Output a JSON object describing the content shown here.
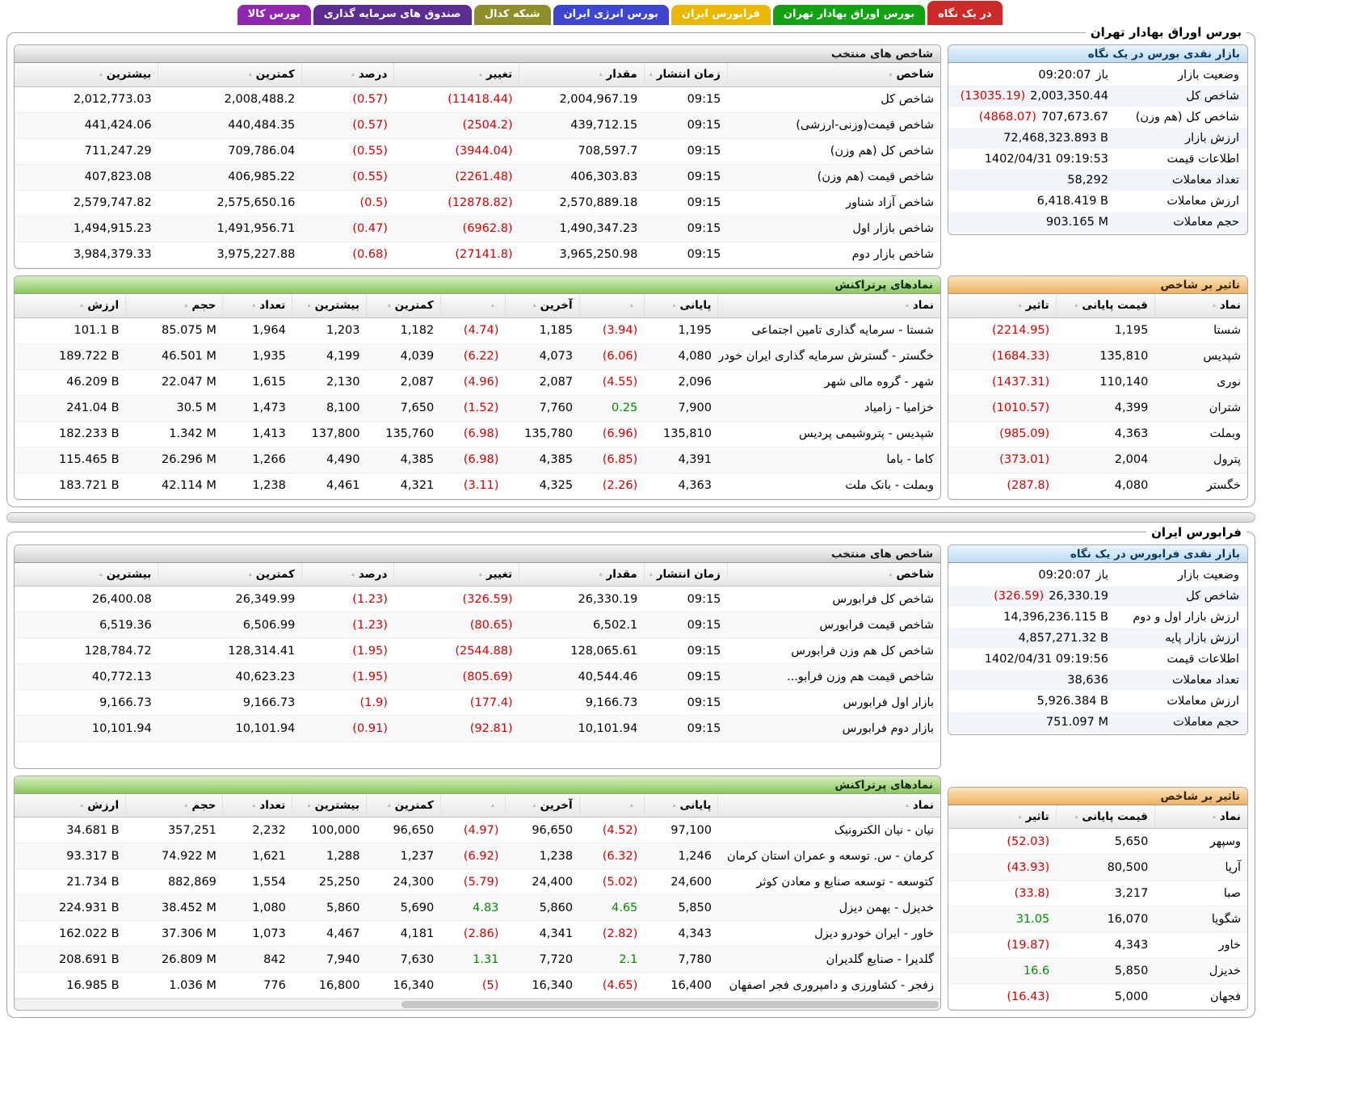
{
  "colors": {
    "negative": "#d40000",
    "positive": "#008a00"
  },
  "tabs": [
    {
      "id": "at-a-glance",
      "label": "در یک نگاه",
      "color": "#cd2a2a",
      "active": true
    },
    {
      "id": "tse",
      "label": "بورس اوراق بهادار تهران",
      "color": "#14a114",
      "active": false
    },
    {
      "id": "ifb",
      "label": "فرابورس ایران",
      "color": "#eab800",
      "active": false
    },
    {
      "id": "energy",
      "label": "بورس انرژی ایران",
      "color": "#3e46cf",
      "active": false
    },
    {
      "id": "codal",
      "label": "شبکه کدال",
      "color": "#8e8e2b",
      "active": false
    },
    {
      "id": "funds",
      "label": "صندوق های سرمایه گذاری",
      "color": "#5c2d91",
      "active": false
    },
    {
      "id": "commodity",
      "label": "بورس کالا",
      "color": "#8e28ae",
      "active": false
    }
  ],
  "sections": [
    {
      "title": "بورس اوراق بهادار تهران",
      "indices": {
        "header": "شاخص های منتخب",
        "columns": [
          "شاخص",
          "زمان انتشار",
          "مقدار",
          "تغییر",
          "درصد",
          "کمترین",
          "بیشترین"
        ],
        "rows": [
          {
            "name": "شاخص کل",
            "time": "09:15",
            "value": "2,004,967.19",
            "change": "(11418.44)",
            "percent": "(0.57)",
            "low": "2,008,488.2",
            "high": "2,012,773.03"
          },
          {
            "name": "شاخص قیمت(وزنی-ارزشی)",
            "time": "09:15",
            "value": "439,712.15",
            "change": "(2504.2)",
            "percent": "(0.57)",
            "low": "440,484.35",
            "high": "441,424.06"
          },
          {
            "name": "شاخص کل (هم وزن)",
            "time": "09:15",
            "value": "708,597.7",
            "change": "(3944.04)",
            "percent": "(0.55)",
            "low": "709,786.04",
            "high": "711,247.29"
          },
          {
            "name": "شاخص قیمت (هم وزن)",
            "time": "09:15",
            "value": "406,303.83",
            "change": "(2261.48)",
            "percent": "(0.55)",
            "low": "406,985.22",
            "high": "407,823.08"
          },
          {
            "name": "شاخص آزاد شناور",
            "time": "09:15",
            "value": "2,570,889.18",
            "change": "(12878.82)",
            "percent": "(0.5)",
            "low": "2,575,650.16",
            "high": "2,579,747.82"
          },
          {
            "name": "شاخص بازار اول",
            "time": "09:15",
            "value": "1,490,347.23",
            "change": "(6962.8)",
            "percent": "(0.47)",
            "low": "1,491,956.71",
            "high": "1,494,915.23"
          },
          {
            "name": "شاخص بازار دوم",
            "time": "09:15",
            "value": "3,965,250.98",
            "change": "(27141.8)",
            "percent": "(0.68)",
            "low": "3,975,227.88",
            "high": "3,984,379.33"
          }
        ]
      },
      "glance": {
        "header": "بازار نقدی بورس در یک نگاه",
        "rows": [
          {
            "label": "وضعیت بازار",
            "parts": [
              {
                "t": "09:20:07"
              },
              {
                "t": "باز"
              }
            ]
          },
          {
            "label": "شاخص کل",
            "parts": [
              {
                "t": "(13035.19)",
                "neg": true
              },
              {
                "t": "2,003,350.44"
              }
            ]
          },
          {
            "label": "شاخص کل (هم وزن)",
            "parts": [
              {
                "t": "(4868.07)",
                "neg": true
              },
              {
                "t": "707,673.67"
              }
            ]
          },
          {
            "label": "ارزش بازار",
            "parts": [
              {
                "t": "72,468,323.893 B"
              }
            ]
          },
          {
            "label": "اطلاعات قیمت",
            "parts": [
              {
                "t": "1402/04/31 09:19:53"
              }
            ]
          },
          {
            "label": "تعداد معاملات",
            "parts": [
              {
                "t": "58,292"
              }
            ]
          },
          {
            "label": "ارزش معاملات",
            "parts": [
              {
                "t": "6,418.419 B"
              }
            ]
          },
          {
            "label": "حجم معاملات",
            "parts": [
              {
                "t": "903.165 M"
              }
            ]
          }
        ]
      },
      "symbols": {
        "header": "نمادهای پرتراکنش",
        "columns": [
          "نماد",
          "پایانی",
          "",
          "آخرین",
          "",
          "کمترین",
          "بیشترین",
          "تعداد",
          "حجم",
          "ارزش"
        ],
        "rows": [
          {
            "name": "شستا - سرمایه گذاری تامین اجتماعی",
            "close": "1,195",
            "close_pct": "(3.94)",
            "last": "1,185",
            "last_pct": "(4.74)",
            "low": "1,182",
            "high": "1,203",
            "count": "1,964",
            "volume": "85.075 M",
            "value": "101.1 B"
          },
          {
            "name": "خگستر - گسترش سرمایه گذاری ایران خودرو",
            "close": "4,080",
            "close_pct": "(6.06)",
            "last": "4,073",
            "last_pct": "(6.22)",
            "low": "4,039",
            "high": "4,199",
            "count": "1,935",
            "volume": "46.501 M",
            "value": "189.722 B"
          },
          {
            "name": "شهر - گروه مالی شهر",
            "close": "2,096",
            "close_pct": "(4.55)",
            "last": "2,087",
            "last_pct": "(4.96)",
            "low": "2,087",
            "high": "2,130",
            "count": "1,615",
            "volume": "22.047 M",
            "value": "46.209 B"
          },
          {
            "name": "خزامیا - زامیاد",
            "close": "7,900",
            "close_pct": "0.25",
            "last": "7,760",
            "last_pct": "(1.52)",
            "low": "7,650",
            "high": "8,100",
            "count": "1,473",
            "volume": "30.5 M",
            "value": "241.04 B"
          },
          {
            "name": "شپدیس - پتروشیمی پردیس",
            "close": "135,810",
            "close_pct": "(6.96)",
            "last": "135,780",
            "last_pct": "(6.98)",
            "low": "135,760",
            "high": "137,800",
            "count": "1,413",
            "volume": "1.342 M",
            "value": "182.233 B"
          },
          {
            "name": "کاما - باما",
            "close": "4,391",
            "close_pct": "(6.85)",
            "last": "4,385",
            "last_pct": "(6.98)",
            "low": "4,385",
            "high": "4,490",
            "count": "1,266",
            "volume": "26.296 M",
            "value": "115.465 B"
          },
          {
            "name": "وبملت - بانک ملت",
            "close": "4,363",
            "close_pct": "(2.26)",
            "last": "4,325",
            "last_pct": "(3.11)",
            "low": "4,321",
            "high": "4,461",
            "count": "1,238",
            "volume": "42.114 M",
            "value": "183.721 B"
          }
        ]
      },
      "impact": {
        "header": "تاثیر بر شاخص",
        "columns": [
          "نماد",
          "قیمت پایانی",
          "تاثیر"
        ],
        "rows": [
          {
            "name": "شستا",
            "close": "1,195",
            "impact": "(2214.95)"
          },
          {
            "name": "شپدیس",
            "close": "135,810",
            "impact": "(1684.33)"
          },
          {
            "name": "نوری",
            "close": "110,140",
            "impact": "(1437.31)"
          },
          {
            "name": "شتران",
            "close": "4,399",
            "impact": "(1010.57)"
          },
          {
            "name": "وبملت",
            "close": "4,363",
            "impact": "(985.09)"
          },
          {
            "name": "پترول",
            "close": "2,004",
            "impact": "(373.01)"
          },
          {
            "name": "خگستر",
            "close": "4,080",
            "impact": "(287.8)"
          }
        ]
      }
    },
    {
      "title": "فرابورس ایران",
      "indices": {
        "header": "شاخص های منتخب",
        "columns": [
          "شاخص",
          "زمان انتشار",
          "مقدار",
          "تغییر",
          "درصد",
          "کمترین",
          "بیشترین"
        ],
        "rows": [
          {
            "name": "شاخص کل فرابورس",
            "time": "09:15",
            "value": "26,330.19",
            "change": "(326.59)",
            "percent": "(1.23)",
            "low": "26,349.99",
            "high": "26,400.08"
          },
          {
            "name": "شاخص قیمت فرابورس",
            "time": "09:15",
            "value": "6,502.1",
            "change": "(80.65)",
            "percent": "(1.23)",
            "low": "6,506.99",
            "high": "6,519.36"
          },
          {
            "name": "شاخص کل هم وزن فرابورس",
            "time": "09:15",
            "value": "128,065.61",
            "change": "(2544.88)",
            "percent": "(1.95)",
            "low": "128,314.41",
            "high": "128,784.72"
          },
          {
            "name": "شاخص قیمت هم وزن فرابو...",
            "time": "09:15",
            "value": "40,544.46",
            "change": "(805.69)",
            "percent": "(1.95)",
            "low": "40,623.23",
            "high": "40,772.13"
          },
          {
            "name": "بازار اول فرابورس",
            "time": "09:15",
            "value": "9,166.73",
            "change": "(177.4)",
            "percent": "(1.9)",
            "low": "9,166.73",
            "high": "9,166.73"
          },
          {
            "name": "بازار دوم فرابورس",
            "time": "09:15",
            "value": "10,101.94",
            "change": "(92.81)",
            "percent": "(0.91)",
            "low": "10,101.94",
            "high": "10,101.94"
          }
        ]
      },
      "glance": {
        "header": "بازار نقدی فرابورس در یک نگاه",
        "rows": [
          {
            "label": "وضعیت بازار",
            "parts": [
              {
                "t": "09:20:07"
              },
              {
                "t": "باز"
              }
            ]
          },
          {
            "label": "شاخص کل",
            "parts": [
              {
                "t": "(326.59)",
                "neg": true
              },
              {
                "t": "26,330.19"
              }
            ]
          },
          {
            "label": "ارزش بازار اول و دوم",
            "parts": [
              {
                "t": "14,396,236.115 B"
              }
            ]
          },
          {
            "label": "ارزش بازار پایه",
            "parts": [
              {
                "t": "4,857,271.32 B"
              }
            ]
          },
          {
            "label": "اطلاعات قیمت",
            "parts": [
              {
                "t": "1402/04/31 09:19:56"
              }
            ]
          },
          {
            "label": "تعداد معاملات",
            "parts": [
              {
                "t": "38,636"
              }
            ]
          },
          {
            "label": "ارزش معاملات",
            "parts": [
              {
                "t": "5,926.384 B"
              }
            ]
          },
          {
            "label": "حجم معاملات",
            "parts": [
              {
                "t": "751.097 M"
              }
            ]
          }
        ]
      },
      "symbols": {
        "header": "نمادهای پرتراکنش",
        "columns": [
          "نماد",
          "پایانی",
          "",
          "آخرین",
          "",
          "کمترین",
          "بیشترین",
          "تعداد",
          "حجم",
          "ارزش"
        ],
        "rows": [
          {
            "name": "نیان - نیان الکترونیک",
            "close": "97,100",
            "close_pct": "(4.52)",
            "last": "96,650",
            "last_pct": "(4.97)",
            "low": "96,650",
            "high": "100,000",
            "count": "2,232",
            "volume": "357,251",
            "value": "34.681 B"
          },
          {
            "name": "کرمان - س. توسعه و عمران استان کرمان",
            "close": "1,246",
            "close_pct": "(6.32)",
            "last": "1,238",
            "last_pct": "(6.92)",
            "low": "1,237",
            "high": "1,288",
            "count": "1,621",
            "volume": "74.922 M",
            "value": "93.317 B"
          },
          {
            "name": "کتوسعه - توسعه صنایع و معادن کوثر",
            "close": "24,600",
            "close_pct": "(5.02)",
            "last": "24,400",
            "last_pct": "(5.79)",
            "low": "24,300",
            "high": "25,250",
            "count": "1,554",
            "volume": "882,869",
            "value": "21.734 B"
          },
          {
            "name": "خدیزل - بهمن دیزل",
            "close": "5,850",
            "close_pct": "4.65",
            "last": "5,860",
            "last_pct": "4.83",
            "low": "5,690",
            "high": "5,860",
            "count": "1,080",
            "volume": "38.452 M",
            "value": "224.931 B"
          },
          {
            "name": "خاور - ایران خودرو دیزل",
            "close": "4,343",
            "close_pct": "(2.82)",
            "last": "4,341",
            "last_pct": "(2.86)",
            "low": "4,181",
            "high": "4,467",
            "count": "1,073",
            "volume": "37.306 M",
            "value": "162.022 B"
          },
          {
            "name": "گلدیرا - صنایع گلدیران",
            "close": "7,780",
            "close_pct": "2.1",
            "last": "7,720",
            "last_pct": "1.31",
            "low": "7,630",
            "high": "7,940",
            "count": "842",
            "volume": "26.809 M",
            "value": "208.691 B"
          },
          {
            "name": "زفجر - کشاورزی و دامپروری فجر اصفهان",
            "close": "16,400",
            "close_pct": "(4.65)",
            "last": "16,340",
            "last_pct": "(5)",
            "low": "16,340",
            "high": "16,800",
            "count": "776",
            "volume": "1.036 M",
            "value": "16.985 B"
          }
        ]
      },
      "impact": {
        "header": "تاثیر بر شاخص",
        "columns": [
          "نماد",
          "قیمت پایانی",
          "تاثیر"
        ],
        "rows": [
          {
            "name": "وسپهر",
            "close": "5,650",
            "impact": "(52.03)"
          },
          {
            "name": "آریا",
            "close": "80,500",
            "impact": "(43.93)"
          },
          {
            "name": "صبا",
            "close": "3,217",
            "impact": "(33.8)"
          },
          {
            "name": "شگویا",
            "close": "16,070",
            "impact": "31.05"
          },
          {
            "name": "خاور",
            "close": "4,343",
            "impact": "(19.87)"
          },
          {
            "name": "خدیزل",
            "close": "5,850",
            "impact": "16.6"
          },
          {
            "name": "فجهان",
            "close": "5,000",
            "impact": "(16.43)"
          }
        ]
      }
    }
  ]
}
